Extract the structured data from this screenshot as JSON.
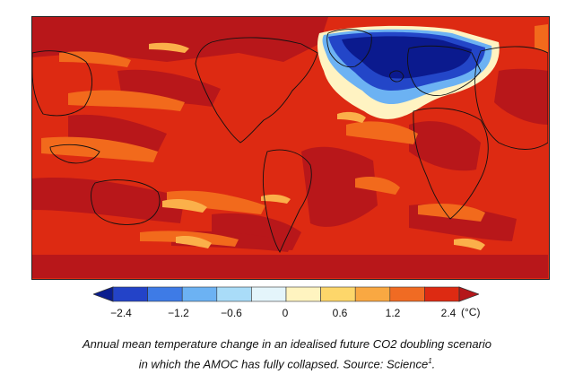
{
  "map": {
    "subject": "world temperature anomaly map",
    "colors": {
      "strong_warming": "#b8171a",
      "warming": "#e0301c",
      "moderate_warming": "#f26a1c",
      "weak_warming": "#fbb04a",
      "neutral": "#fff3c2",
      "cooling": "#2346c8",
      "strong_cooling": "#0b1a8e",
      "land_outline": "#111111"
    }
  },
  "colorbar": {
    "colors": [
      "#0a1d8f",
      "#2343c8",
      "#3e7be6",
      "#6cb2f3",
      "#a9dcf8",
      "#e4f5fb",
      "#fff4c0",
      "#fdd66a",
      "#f9a842",
      "#f06b23",
      "#dd2a12",
      "#b5171b"
    ],
    "tick_labels": [
      "−2.4",
      "−1.2",
      "−0.6",
      "0",
      "0.6",
      "1.2",
      "2.4"
    ],
    "unit": "(°C)"
  },
  "caption": {
    "line1": "Annual mean temperature change in an idealised future CO2 doubling scenario",
    "line2_text": "in which the AMOC has fully collapsed. Source: Science",
    "line2_sup": "1",
    "line2_end": "."
  }
}
